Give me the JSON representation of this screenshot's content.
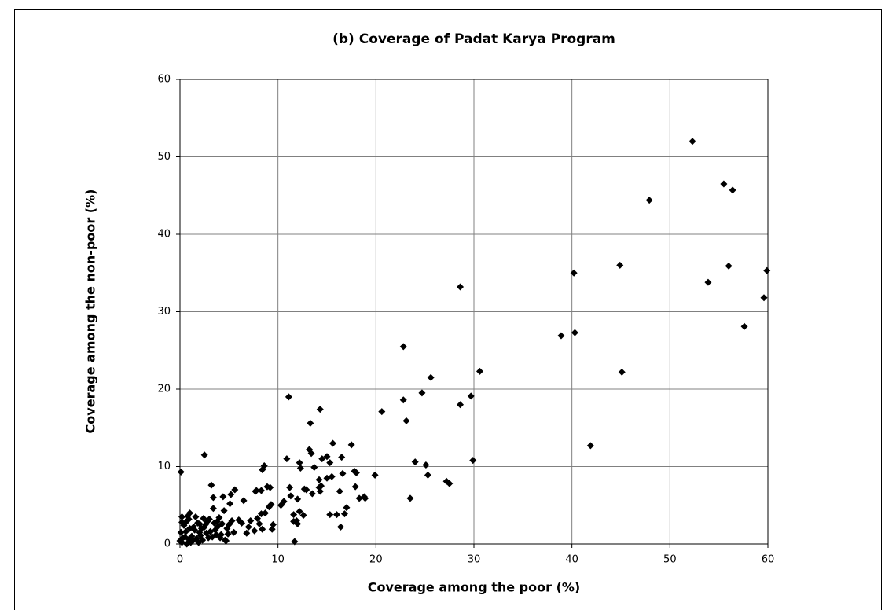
{
  "chart_data": {
    "type": "scatter",
    "title": "(b) Coverage of Padat Karya Program",
    "xlabel": "Coverage among the poor (%)",
    "ylabel": "Coverage among the non-poor (%)",
    "color": "#000000",
    "grid": true,
    "xlim": [
      0,
      60
    ],
    "xticks": [
      0,
      10,
      20,
      30,
      40,
      50,
      60
    ],
    "ylim": [
      0,
      60
    ],
    "yticks": [
      0,
      10,
      20,
      30,
      40,
      50,
      60
    ],
    "x": [
      52.3,
      55.5,
      56.4,
      47.9,
      44.9,
      40.2,
      56.0,
      53.9,
      59.9,
      59.6,
      57.6,
      38.9,
      40.3,
      45.1,
      41.9,
      28.6,
      22.8,
      30.6,
      25.6,
      20.6,
      22.8,
      24.7,
      29.7,
      28.6,
      23.1,
      29.9,
      24.0,
      25.1,
      25.3,
      27.2,
      27.5,
      23.5,
      19.9,
      11.1,
      14.3,
      13.3,
      15.6,
      17.5,
      13.2,
      13.4,
      16.5,
      14.5,
      15.0,
      15.3,
      12.2,
      10.9,
      12.3,
      13.7,
      16.6,
      17.8,
      18.0,
      15.5,
      14.2,
      15.0,
      14.4,
      14.2,
      12.7,
      12.9,
      11.2,
      11.3,
      12.0,
      13.5,
      14.3,
      16.3,
      17.9,
      18.3,
      18.9,
      18.8,
      17.0,
      16.8,
      16.0,
      15.3,
      16.4,
      11.6,
      11.9,
      12.2,
      12.6,
      11.6,
      12.0,
      10.6,
      10.3,
      9.3,
      8.6,
      8.4,
      8.9,
      7.7,
      7.8,
      8.3,
      9.2,
      6.5,
      5.6,
      5.2,
      4.4,
      3.4,
      3.2,
      2.5,
      0.1,
      3.4,
      4.5,
      5.1,
      8.7,
      8.3,
      9.1,
      9.5,
      7.2,
      7.9,
      7.0,
      6.8,
      7.6,
      8.4,
      8.1,
      9.4,
      11.7,
      6.3,
      6.0,
      5.3,
      5.0,
      4.8,
      4.6,
      4.2,
      3.9,
      3.6,
      3.0,
      2.8,
      2.6,
      2.4,
      2.2,
      2.0,
      1.8,
      1.6,
      1.4,
      1.2,
      1.0,
      0.8,
      0.6,
      0.4,
      0.2,
      0.1,
      0.0,
      0.2,
      0.5,
      0.7,
      0.9,
      1.1,
      1.3,
      1.5,
      1.7,
      1.9,
      2.1,
      2.3,
      2.7,
      2.9,
      3.1,
      3.3,
      3.5,
      3.7,
      4.0,
      4.1,
      4.7,
      5.5,
      0.3,
      0.6,
      1.0,
      0.2,
      0.9,
      2.5,
      3.8,
      4.9,
      4.3,
      2.0
    ],
    "y": [
      52.0,
      46.5,
      45.7,
      44.4,
      36.0,
      35.0,
      35.9,
      33.8,
      35.3,
      31.8,
      28.1,
      26.9,
      27.3,
      22.2,
      12.7,
      33.2,
      25.5,
      22.3,
      21.5,
      17.1,
      18.6,
      19.5,
      19.1,
      18.0,
      15.9,
      10.8,
      10.6,
      10.2,
      8.9,
      8.1,
      7.8,
      5.9,
      8.9,
      19.0,
      17.4,
      15.6,
      13.0,
      12.8,
      12.2,
      11.7,
      11.2,
      11.0,
      11.3,
      10.5,
      10.5,
      11.0,
      9.8,
      9.9,
      9.1,
      9.4,
      9.2,
      8.7,
      8.3,
      8.5,
      7.5,
      7.3,
      7.1,
      7.0,
      7.3,
      6.2,
      5.8,
      6.5,
      6.8,
      6.8,
      7.4,
      5.9,
      5.9,
      6.1,
      4.7,
      3.9,
      3.8,
      3.8,
      2.2,
      3.8,
      3.0,
      4.2,
      3.7,
      2.9,
      2.6,
      5.5,
      5.0,
      5.1,
      10.1,
      9.6,
      7.4,
      6.8,
      6.9,
      6.9,
      7.3,
      5.6,
      7.0,
      6.4,
      6.1,
      6.0,
      7.6,
      11.5,
      9.3,
      4.6,
      4.3,
      5.2,
      4.0,
      3.9,
      4.8,
      2.5,
      3.0,
      3.3,
      2.2,
      1.4,
      1.7,
      1.9,
      2.6,
      1.9,
      0.3,
      2.7,
      3.1,
      3.0,
      2.5,
      2.0,
      0.5,
      1.2,
      2.3,
      1.8,
      3.2,
      2.9,
      2.5,
      3.3,
      2.0,
      1.5,
      2.7,
      3.5,
      2.2,
      1.0,
      4.0,
      3.6,
      2.8,
      2.4,
      3.5,
      1.5,
      0.4,
      0.2,
      0.9,
      0.0,
      0.6,
      0.2,
      0.4,
      1.8,
      0.7,
      0.2,
      1.1,
      0.5,
      1.4,
      0.8,
      1.6,
      0.9,
      2.7,
      1.2,
      3.4,
      0.8,
      0.4,
      1.5,
      0.8,
      1.6,
      2.0,
      2.8,
      3.2,
      2.2,
      2.9,
      1.3,
      2.6,
      2.6
    ]
  }
}
